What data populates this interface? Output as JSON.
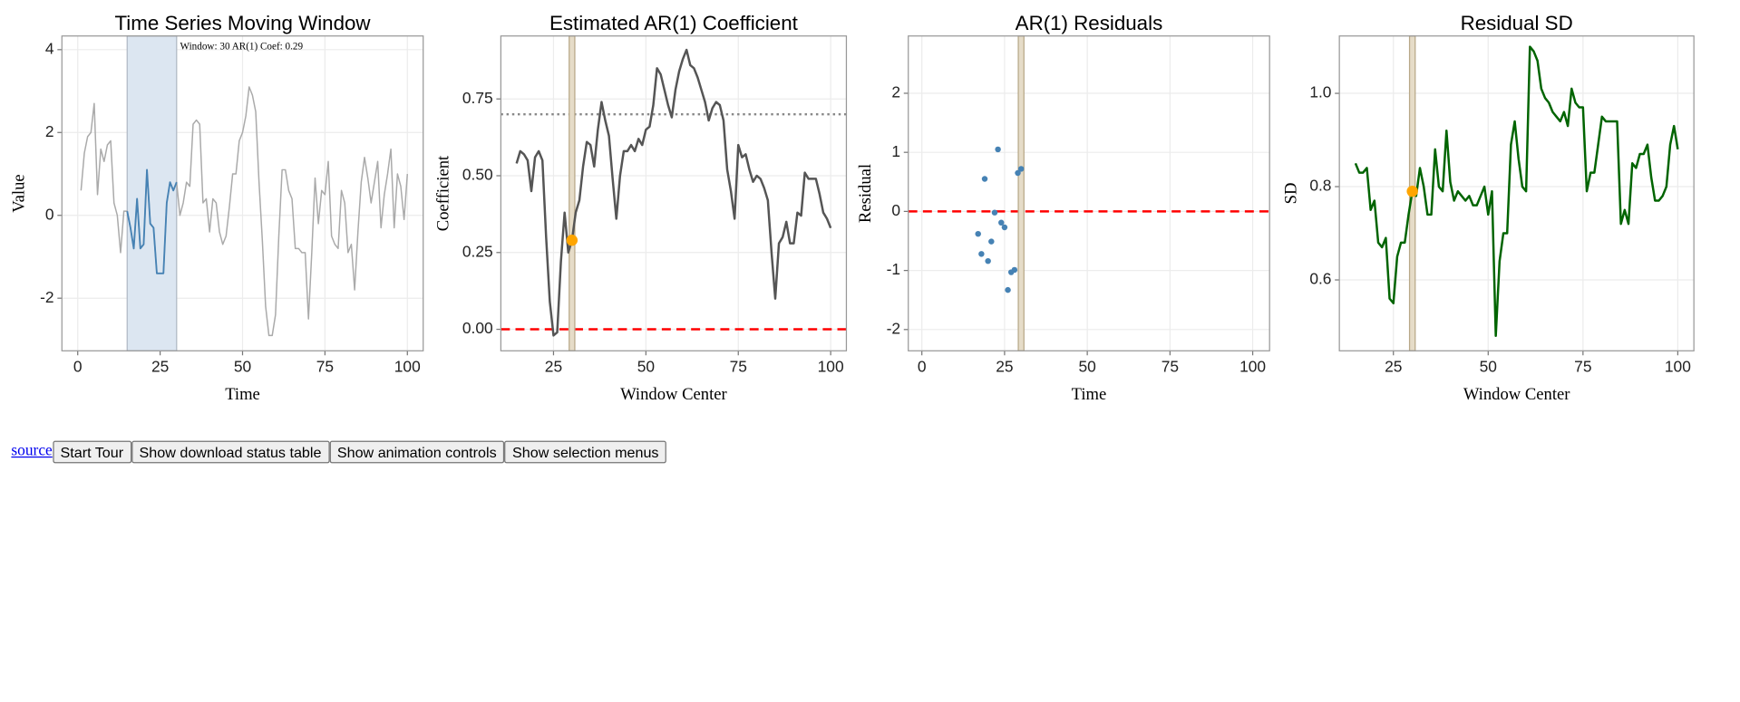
{
  "chart_data": [
    {
      "type": "line",
      "title": "Time Series Moving Window",
      "x_label": "Time",
      "y_label": "Value",
      "x": [
        1,
        2,
        3,
        4,
        5,
        6,
        7,
        8,
        9,
        10,
        11,
        12,
        13,
        14,
        15,
        16,
        17,
        18,
        19,
        20,
        21,
        22,
        23,
        24,
        25,
        26,
        27,
        28,
        29,
        30,
        31,
        32,
        33,
        34,
        35,
        36,
        37,
        38,
        39,
        40,
        41,
        42,
        43,
        44,
        45,
        46,
        47,
        48,
        49,
        50,
        51,
        52,
        53,
        54,
        55,
        56,
        57,
        58,
        59,
        60,
        61,
        62,
        63,
        64,
        65,
        66,
        67,
        68,
        69,
        70,
        71,
        72,
        73,
        74,
        75,
        76,
        77,
        78,
        79,
        80,
        81,
        82,
        83,
        84,
        85,
        86,
        87,
        88,
        89,
        90,
        91,
        92,
        93,
        94,
        95,
        96,
        97,
        98,
        99,
        100
      ],
      "values": [
        0.6,
        1.5,
        1.9,
        2.0,
        2.7,
        0.5,
        1.6,
        1.3,
        1.7,
        1.8,
        0.3,
        0.0,
        -0.9,
        0.1,
        0.1,
        -0.3,
        -0.8,
        0.4,
        -0.8,
        -0.7,
        1.1,
        -0.2,
        -0.3,
        -1.4,
        -1.4,
        -1.4,
        0.3,
        0.8,
        0.6,
        0.8,
        0.0,
        0.3,
        0.8,
        0.7,
        2.2,
        2.3,
        2.2,
        0.3,
        0.4,
        -0.4,
        0.4,
        0.3,
        -0.4,
        -0.7,
        -0.5,
        0.2,
        1.0,
        1.0,
        1.8,
        2.0,
        2.4,
        3.1,
        2.9,
        2.5,
        0.8,
        -0.6,
        -2.2,
        -2.9,
        -2.9,
        -2.4,
        -0.5,
        1.1,
        1.1,
        0.6,
        0.4,
        -0.8,
        -0.8,
        -0.9,
        -0.9,
        -2.5,
        -0.9,
        0.9,
        -0.2,
        0.6,
        0.5,
        1.3,
        -0.5,
        -0.7,
        -0.8,
        0.6,
        0.3,
        -0.9,
        -0.7,
        -1.8,
        -0.4,
        0.8,
        1.4,
        0.9,
        0.3,
        0.8,
        1.3,
        -0.3,
        0.5,
        1.0,
        1.6,
        -0.3,
        1.0,
        0.7,
        -0.1,
        1.0
      ],
      "color": "#aaaaaa",
      "window": [
        15,
        30
      ],
      "window_color": "#4682b4",
      "window_fill": "#dce6f1",
      "annotation": "Window: 30 AR(1) Coef: 0.29",
      "xlim": [
        -4.8,
        104.8
      ],
      "xticks": [
        0,
        25,
        50,
        75,
        100
      ],
      "ylim": [
        -3.27,
        4.33
      ],
      "yticks": [
        -2,
        0,
        2,
        4
      ],
      "grid": true
    },
    {
      "type": "line",
      "title": "Estimated AR(1) Coefficient",
      "x_label": "Window Center",
      "y_label": "Coefficient",
      "x": [
        15,
        16,
        17,
        18,
        19,
        20,
        21,
        22,
        23,
        24,
        25,
        26,
        27,
        28,
        29,
        30,
        31,
        32,
        33,
        34,
        35,
        36,
        37,
        38,
        39,
        40,
        41,
        42,
        43,
        44,
        45,
        46,
        47,
        48,
        49,
        50,
        51,
        52,
        53,
        54,
        55,
        56,
        57,
        58,
        59,
        60,
        61,
        62,
        63,
        64,
        65,
        66,
        67,
        68,
        69,
        70,
        71,
        72,
        73,
        74,
        75,
        76,
        77,
        78,
        79,
        80,
        81,
        82,
        83,
        84,
        85,
        86,
        87,
        88,
        89,
        90,
        91,
        92,
        93,
        94,
        95,
        96,
        97,
        98,
        99,
        100
      ],
      "values": [
        0.54,
        0.58,
        0.57,
        0.55,
        0.45,
        0.56,
        0.58,
        0.55,
        0.3,
        0.09,
        -0.02,
        -0.01,
        0.22,
        0.38,
        0.25,
        0.29,
        0.38,
        0.42,
        0.53,
        0.61,
        0.6,
        0.53,
        0.65,
        0.74,
        0.68,
        0.63,
        0.49,
        0.36,
        0.5,
        0.58,
        0.58,
        0.6,
        0.58,
        0.62,
        0.6,
        0.65,
        0.66,
        0.73,
        0.85,
        0.83,
        0.78,
        0.73,
        0.69,
        0.78,
        0.84,
        0.88,
        0.91,
        0.86,
        0.85,
        0.82,
        0.78,
        0.74,
        0.68,
        0.72,
        0.74,
        0.73,
        0.68,
        0.52,
        0.45,
        0.36,
        0.6,
        0.56,
        0.57,
        0.52,
        0.48,
        0.5,
        0.49,
        0.46,
        0.42,
        0.25,
        0.1,
        0.28,
        0.3,
        0.35,
        0.28,
        0.28,
        0.38,
        0.37,
        0.51,
        0.49,
        0.49,
        0.49,
        0.44,
        0.38,
        0.36,
        0.33
      ],
      "color": "#555555",
      "selected_x": 30,
      "selected_color": "#ffa500",
      "hlines": [
        {
          "value": 0.7,
          "color": "#888888",
          "style": "dotted"
        },
        {
          "value": 0,
          "color": "#ff0000",
          "style": "dashed"
        }
      ],
      "xlim": [
        10.75,
        104.25
      ],
      "xticks": [
        25,
        50,
        75,
        100
      ],
      "ylim": [
        -0.07,
        0.955
      ],
      "yticks": [
        {
          "value": 0,
          "label": "0.00"
        },
        0.25,
        {
          "value": 0.5,
          "label": "0.50"
        },
        0.75
      ],
      "grid": true
    },
    {
      "type": "scatter",
      "title": "AR(1) Residuals",
      "x_label": "Time",
      "y_label": "Residual",
      "x": [
        17,
        18,
        19,
        20,
        21,
        22,
        23,
        24,
        25,
        26,
        27,
        28,
        29,
        30
      ],
      "values": [
        -0.38,
        -0.72,
        0.55,
        -0.84,
        -0.51,
        -0.02,
        1.05,
        -0.19,
        -0.27,
        -1.33,
        -1.03,
        -0.99,
        0.65,
        0.72
      ],
      "color": "#4682b4",
      "selected_x": 30,
      "hlines": [
        {
          "value": 0,
          "color": "#ff0000",
          "style": "dashed"
        }
      ],
      "xlim": [
        -4.1,
        105.1
      ],
      "xticks": [
        0,
        25,
        50,
        75,
        100
      ],
      "ylim": [
        -2.36,
        2.97
      ],
      "yticks": [
        -2,
        -1,
        0,
        1,
        2
      ],
      "grid": true
    },
    {
      "type": "line",
      "title": "Residual SD",
      "x_label": "Window Center",
      "y_label": "SD",
      "x": [
        15,
        16,
        17,
        18,
        19,
        20,
        21,
        22,
        23,
        24,
        25,
        26,
        27,
        28,
        29,
        30,
        31,
        32,
        33,
        34,
        35,
        36,
        37,
        38,
        39,
        40,
        41,
        42,
        43,
        44,
        45,
        46,
        47,
        48,
        49,
        50,
        51,
        52,
        53,
        54,
        55,
        56,
        57,
        58,
        59,
        60,
        61,
        62,
        63,
        64,
        65,
        66,
        67,
        68,
        69,
        70,
        71,
        72,
        73,
        74,
        75,
        76,
        77,
        78,
        79,
        80,
        81,
        82,
        83,
        84,
        85,
        86,
        87,
        88,
        89,
        90,
        91,
        92,
        93,
        94,
        95,
        96,
        97,
        98,
        99,
        100
      ],
      "values": [
        0.85,
        0.83,
        0.83,
        0.84,
        0.75,
        0.77,
        0.68,
        0.67,
        0.69,
        0.56,
        0.55,
        0.65,
        0.68,
        0.68,
        0.74,
        0.79,
        0.78,
        0.84,
        0.8,
        0.74,
        0.74,
        0.88,
        0.8,
        0.79,
        0.92,
        0.81,
        0.77,
        0.79,
        0.78,
        0.77,
        0.78,
        0.76,
        0.76,
        0.78,
        0.8,
        0.74,
        0.79,
        0.48,
        0.64,
        0.7,
        0.7,
        0.89,
        0.94,
        0.86,
        0.8,
        0.79,
        1.1,
        1.09,
        1.07,
        1.01,
        0.99,
        0.98,
        0.96,
        0.95,
        0.94,
        0.96,
        0.93,
        1.01,
        0.98,
        0.97,
        0.97,
        0.79,
        0.83,
        0.83,
        0.89,
        0.95,
        0.94,
        0.94,
        0.94,
        0.94,
        0.72,
        0.75,
        0.72,
        0.85,
        0.84,
        0.87,
        0.87,
        0.89,
        0.82,
        0.77,
        0.77,
        0.78,
        0.8,
        0.89,
        0.93,
        0.88
      ],
      "color": "#006400",
      "selected_x": 30,
      "selected_color": "#ffa500",
      "xlim": [
        10.75,
        104.25
      ],
      "xticks": [
        25,
        50,
        75,
        100
      ],
      "ylim": [
        0.448,
        1.123
      ],
      "yticks": [
        0.6,
        0.8,
        {
          "value": 1,
          "label": "1.0"
        }
      ],
      "grid": true
    }
  ],
  "controls": {
    "link": "source",
    "buttons": [
      "Start Tour",
      "Show download status table",
      "Show animation controls",
      "Show selection menus"
    ]
  }
}
